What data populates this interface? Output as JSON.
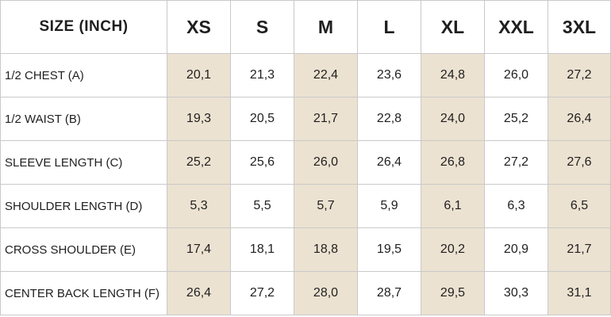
{
  "table": {
    "header_label": "SIZE (INCH)",
    "sizes": [
      "XS",
      "S",
      "M",
      "L",
      "XL",
      "XXL",
      "3XL"
    ],
    "shade_color": "#ece2d1",
    "shaded_columns": [
      "XS",
      "M",
      "XL",
      "3XL"
    ],
    "rows": [
      {
        "label": "1/2 CHEST (A)",
        "values": [
          "20,1",
          "21,3",
          "22,4",
          "23,6",
          "24,8",
          "26,0",
          "27,2"
        ]
      },
      {
        "label": "1/2 WAIST (B)",
        "values": [
          "19,3",
          "20,5",
          "21,7",
          "22,8",
          "24,0",
          "25,2",
          "26,4"
        ]
      },
      {
        "label": "SLEEVE LENGTH (C)",
        "values": [
          "25,2",
          "25,6",
          "26,0",
          "26,4",
          "26,8",
          "27,2",
          "27,6"
        ]
      },
      {
        "label": "SHOULDER LENGTH (D)",
        "values": [
          "5,3",
          "5,5",
          "5,7",
          "5,9",
          "6,1",
          "6,3",
          "6,5"
        ]
      },
      {
        "label": "CROSS SHOULDER (E)",
        "values": [
          "17,4",
          "18,1",
          "18,8",
          "19,5",
          "20,2",
          "20,9",
          "21,7"
        ]
      },
      {
        "label": "CENTER BACK LENGTH (F)",
        "values": [
          "26,4",
          "27,2",
          "28,0",
          "28,7",
          "29,5",
          "30,3",
          "31,1"
        ]
      }
    ]
  }
}
